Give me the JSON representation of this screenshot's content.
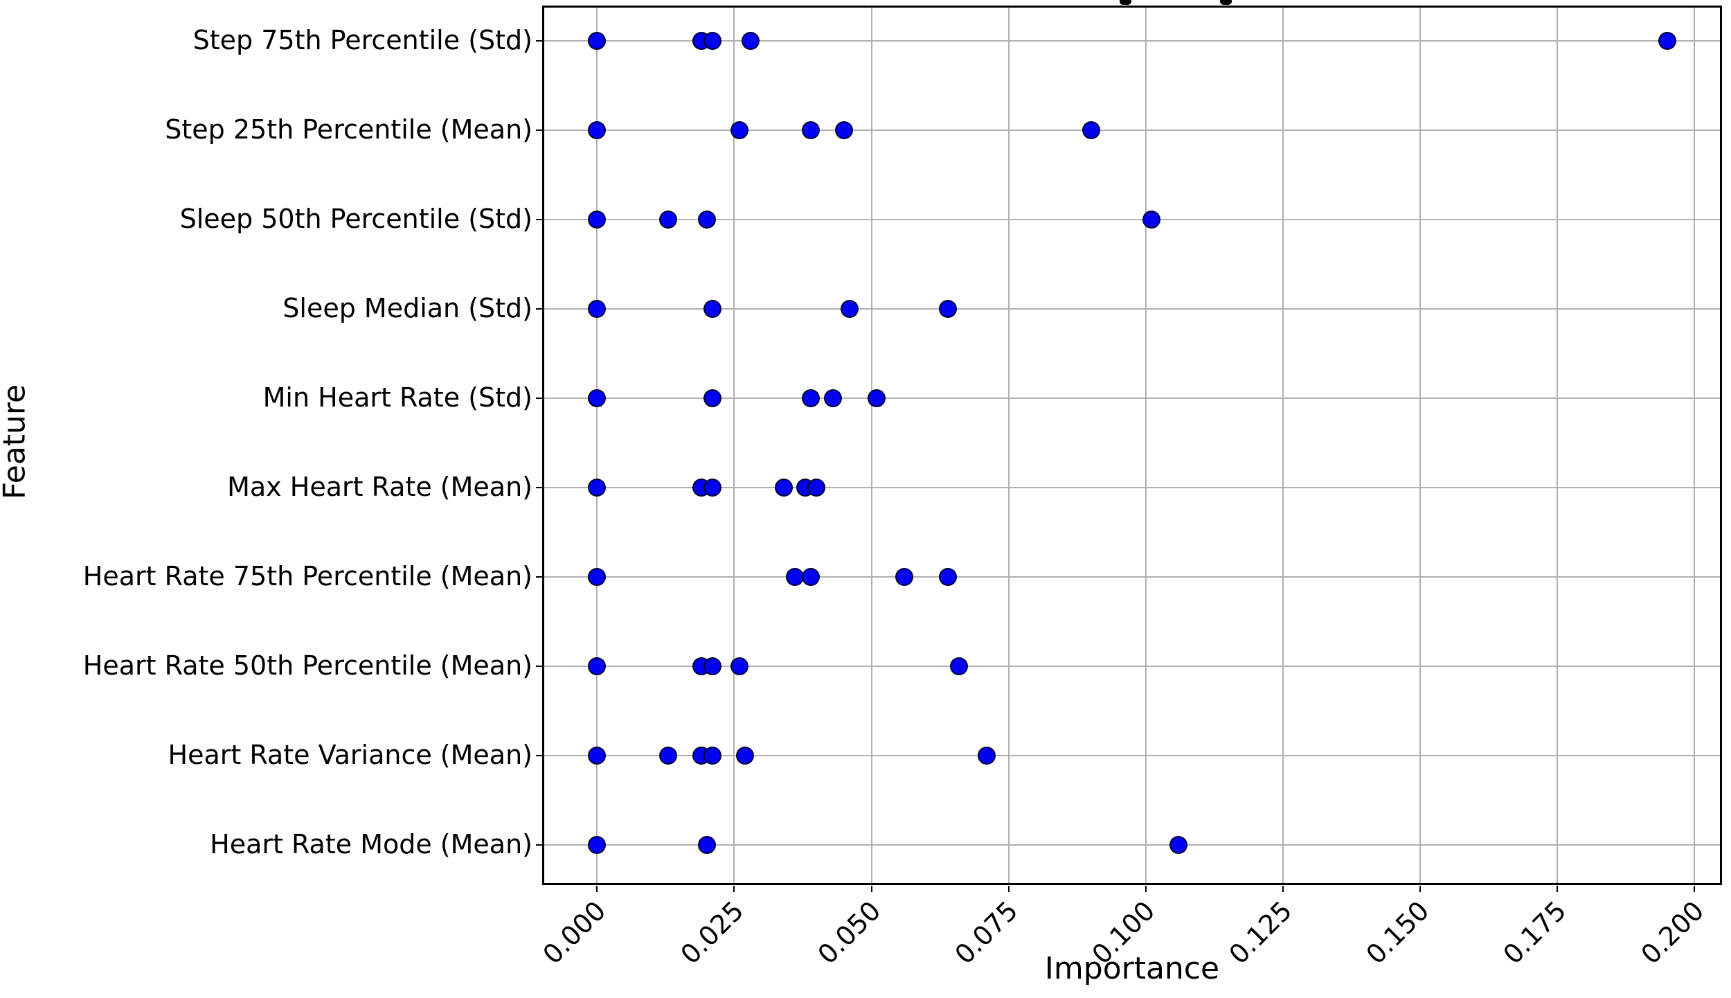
{
  "figure": {
    "background": "#ffffff",
    "cropped_title_fragments": [
      {
        "x": 1617,
        "w": 17
      },
      {
        "x": 1762,
        "w": 17
      }
    ]
  },
  "chart_data": {
    "type": "scatter",
    "orientation": "horizontal-categorical-strip",
    "xlabel": "Importance",
    "ylabel": "Feature",
    "xlim": [
      -0.01,
      0.205
    ],
    "x_ticks": [
      0.0,
      0.025,
      0.05,
      0.075,
      0.1,
      0.125,
      0.15,
      0.175,
      0.2
    ],
    "x_tick_labels": [
      "0.000",
      "0.025",
      "0.050",
      "0.075",
      "0.100",
      "0.125",
      "0.150",
      "0.175",
      "0.200"
    ],
    "x_tick_label_rotation_deg": 45,
    "grid": true,
    "legend": null,
    "marker": {
      "shape": "circle",
      "color": "#0000f2",
      "edge_color": "rgba(0,0,25,0.85)"
    },
    "colors": {
      "grid": "#b0b0b0",
      "spine": "#000000",
      "tick": "#000000"
    },
    "categories": [
      "Step 75th Percentile (Std)",
      "Step 25th Percentile (Mean)",
      "Sleep 50th Percentile (Std)",
      "Sleep Median (Std)",
      "Min Heart Rate (Std)",
      "Max Heart Rate (Mean)",
      "Heart Rate 75th Percentile (Mean)",
      "Heart Rate 50th Percentile (Mean)",
      "Heart Rate Variance (Mean)",
      "Heart Rate Mode (Mean)"
    ],
    "rows": [
      {
        "label": "Step 75th Percentile (Std)",
        "values": [
          0.0,
          0.019,
          0.021,
          0.028,
          0.195
        ]
      },
      {
        "label": "Step 25th Percentile (Mean)",
        "values": [
          0.0,
          0.026,
          0.039,
          0.045,
          0.09
        ]
      },
      {
        "label": "Sleep 50th Percentile (Std)",
        "values": [
          0.0,
          0.013,
          0.02,
          0.101
        ]
      },
      {
        "label": "Sleep Median (Std)",
        "values": [
          0.0,
          0.021,
          0.046,
          0.064
        ]
      },
      {
        "label": "Min Heart Rate (Std)",
        "values": [
          0.0,
          0.021,
          0.039,
          0.043,
          0.051
        ]
      },
      {
        "label": "Max Heart Rate (Mean)",
        "values": [
          0.0,
          0.019,
          0.021,
          0.034,
          0.038,
          0.04
        ]
      },
      {
        "label": "Heart Rate 75th Percentile (Mean)",
        "values": [
          0.0,
          0.036,
          0.039,
          0.056,
          0.064
        ]
      },
      {
        "label": "Heart Rate 50th Percentile (Mean)",
        "values": [
          0.0,
          0.019,
          0.021,
          0.026,
          0.066
        ]
      },
      {
        "label": "Heart Rate Variance (Mean)",
        "values": [
          0.0,
          0.013,
          0.019,
          0.021,
          0.027,
          0.071
        ]
      },
      {
        "label": "Heart Rate Mode (Mean)",
        "values": [
          0.0,
          0.02,
          0.106
        ]
      }
    ]
  }
}
